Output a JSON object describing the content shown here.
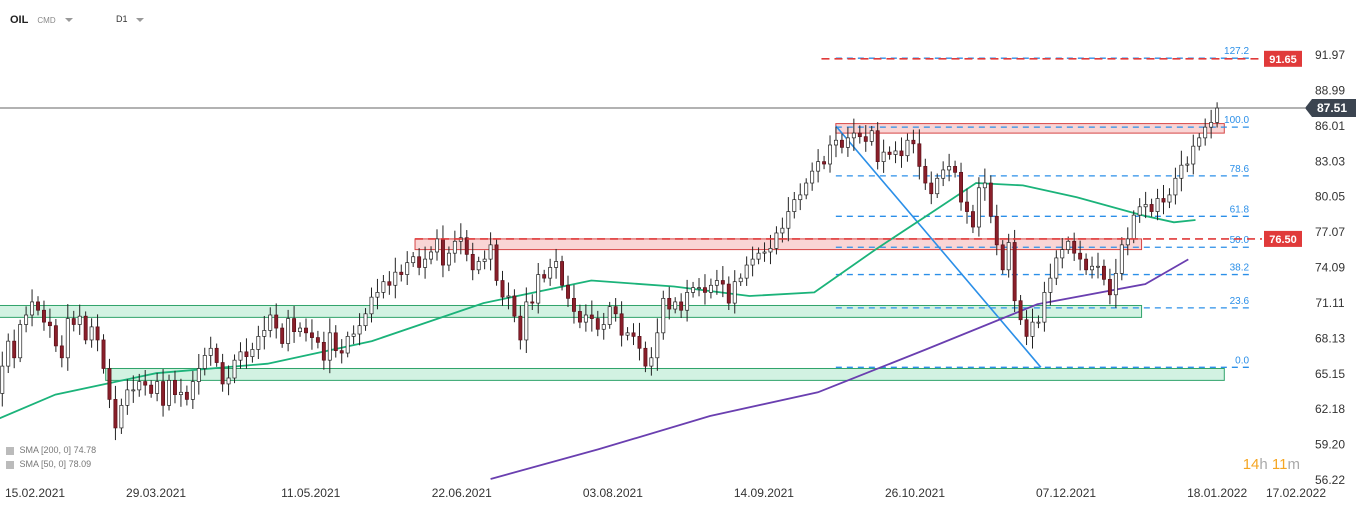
{
  "header": {
    "symbol": "OIL",
    "market": "CMD",
    "timeframe": "D1"
  },
  "indicators": [
    {
      "label": "SMA [200, 0]",
      "value": "74.78",
      "color": "#6a3fb0"
    },
    {
      "label": "SMA [50, 0]",
      "value": "78.09",
      "color": "#1bb37a"
    }
  ],
  "timer": {
    "hours": "14",
    "h": "h",
    "minutes": "11",
    "m": "m"
  },
  "chart_data": {
    "type": "candlestick",
    "ylim": [
      56.22,
      93.0
    ],
    "y_ticks": [
      "91.97",
      "88.99",
      "86.01",
      "83.03",
      "80.05",
      "77.07",
      "74.09",
      "71.11",
      "68.13",
      "65.15",
      "62.18",
      "59.20",
      "56.22"
    ],
    "x_ticks": [
      "15.02.2021",
      "29.03.2021",
      "11.05.2021",
      "22.06.2021",
      "03.08.2021",
      "14.09.2021",
      "26.10.2021",
      "07.12.2021",
      "18.01.2022",
      "17.02.2022"
    ],
    "current_price": {
      "value": 87.51,
      "label": "87.51"
    },
    "price_levels": [
      {
        "value": 91.65,
        "label": "91.65",
        "color": "#e03a3a"
      },
      {
        "value": 76.5,
        "label": "76.50",
        "color": "#e03a3a"
      }
    ],
    "fibonacci": [
      {
        "ratio": "127.2",
        "price": 91.7
      },
      {
        "ratio": "100.0",
        "price": 85.9
      },
      {
        "ratio": "78.6",
        "price": 81.8
      },
      {
        "ratio": "61.8",
        "price": 78.4
      },
      {
        "ratio": "50.0",
        "price": 75.8
      },
      {
        "ratio": "38.2",
        "price": 73.5
      },
      {
        "ratio": "23.6",
        "price": 70.7
      },
      {
        "ratio": "0.0",
        "price": 65.7
      }
    ],
    "zones": [
      {
        "kind": "resistance",
        "from": "2021-10-04",
        "to": "2022-01-20",
        "low": 85.4,
        "high": 86.2
      },
      {
        "kind": "resistance",
        "from": "2021-06-09",
        "to": "2021-12-28",
        "low": 75.6,
        "high": 76.5
      },
      {
        "kind": "support",
        "from": "2021-02-02",
        "to": "2021-12-28",
        "low": 69.9,
        "high": 70.9
      },
      {
        "kind": "support",
        "from": "2021-03-15",
        "to": "2022-01-20",
        "low": 64.6,
        "high": 65.6
      }
    ],
    "trendline": {
      "from": [
        "2021-10-04",
        86.0
      ],
      "to": [
        "2021-11-30",
        65.7
      ]
    },
    "sma_200": [
      [
        "2021-06-30",
        56.3
      ],
      [
        "2021-07-30",
        58.8
      ],
      [
        "2021-08-30",
        61.6
      ],
      [
        "2021-09-29",
        63.6
      ],
      [
        "2021-10-29",
        67.2
      ],
      [
        "2021-11-29",
        71.0
      ],
      [
        "2021-12-29",
        72.7
      ],
      [
        "2022-01-10",
        74.78
      ]
    ],
    "sma_50": [
      [
        "2021-02-01",
        59.8
      ],
      [
        "2021-03-01",
        63.4
      ],
      [
        "2021-03-29",
        65.2
      ],
      [
        "2021-04-29",
        66.0
      ],
      [
        "2021-05-28",
        67.9
      ],
      [
        "2021-06-28",
        71.1
      ],
      [
        "2021-07-28",
        73.0
      ],
      [
        "2021-08-20",
        72.5
      ],
      [
        "2021-09-10",
        71.7
      ],
      [
        "2021-09-28",
        72.0
      ],
      [
        "2021-10-15",
        75.6
      ],
      [
        "2021-11-01",
        79.0
      ],
      [
        "2021-11-12",
        81.2
      ],
      [
        "2021-11-25",
        81.0
      ],
      [
        "2021-12-10",
        80.0
      ],
      [
        "2021-12-28",
        78.5
      ],
      [
        "2022-01-06",
        77.9
      ],
      [
        "2022-01-12",
        78.09
      ]
    ],
    "closes": [
      63.6,
      63.2,
      65.0,
      64.0,
      61.5,
      65.5,
      67.0,
      63.5,
      65.8,
      67.9,
      66.5,
      69.3,
      70.1,
      71.2,
      70.5,
      69.5,
      69.2,
      67.5,
      66.5,
      69.8,
      69.3,
      70.0,
      68.0,
      69.1,
      68.0,
      65.6,
      63.0,
      60.6,
      62.5,
      63.8,
      63.8,
      64.5,
      64.2,
      63.5,
      64.5,
      62.5,
      64.6,
      63.4,
      63.6,
      63.0,
      64.5,
      65.6,
      66.7,
      67.3,
      66.1,
      64.3,
      64.8,
      66.3,
      67.0,
      66.6,
      67.2,
      68.3,
      68.8,
      70.1,
      69.0,
      67.7,
      69.8,
      68.7,
      69.0,
      68.6,
      68.2,
      67.8,
      66.3,
      68.6,
      67.1,
      66.9,
      68.3,
      68.5,
      69.2,
      70.2,
      71.6,
      72.0,
      72.9,
      72.6,
      73.7,
      73.5,
      74.5,
      75.0,
      74.1,
      74.8,
      75.4,
      76.5,
      74.3,
      75.3,
      76.3,
      76.6,
      75.2,
      73.9,
      74.6,
      74.8,
      76.0,
      73.0,
      71.6,
      71.7,
      70.0,
      68.0,
      71.2,
      71.1,
      73.5,
      73.2,
      74.1,
      74.6,
      72.6,
      71.5,
      70.4,
      69.5,
      70.1,
      69.8,
      68.9,
      69.3,
      70.8,
      70.2,
      68.4,
      68.6,
      68.3,
      67.3,
      65.8,
      66.5,
      68.6,
      71.5,
      70.6,
      71.2,
      70.5,
      72.0,
      72.4,
      72.4,
      72.0,
      72.6,
      73.0,
      72.7,
      71.1,
      72.9,
      73.2,
      74.3,
      74.8,
      75.3,
      75.4,
      75.7,
      77.0,
      77.4,
      78.8,
      79.8,
      80.2,
      81.2,
      82.2,
      83.0,
      82.8,
      84.4,
      84.8,
      84.2,
      85.0,
      85.4,
      85.1,
      84.7,
      85.6,
      83.0,
      83.8,
      83.6,
      83.9,
      83.5,
      84.8,
      84.5,
      82.6,
      81.2,
      80.3,
      81.6,
      82.3,
      82.6,
      82.1,
      79.6,
      78.8,
      77.5,
      80.8,
      81.2,
      78.4,
      76.0,
      73.9,
      76.2,
      71.3,
      69.7,
      68.3,
      69.5,
      69.5,
      72.0,
      73.2,
      74.9,
      75.6,
      76.3,
      75.3,
      74.8,
      73.9,
      74.2,
      74.2,
      73.1,
      71.8,
      73.6,
      76.0,
      76.5,
      78.5,
      79.2,
      79.4,
      78.8,
      79.9,
      79.6,
      80.2,
      81.6,
      82.7,
      82.8,
      84.3,
      85.0,
      85.9,
      86.3,
      87.51
    ]
  }
}
